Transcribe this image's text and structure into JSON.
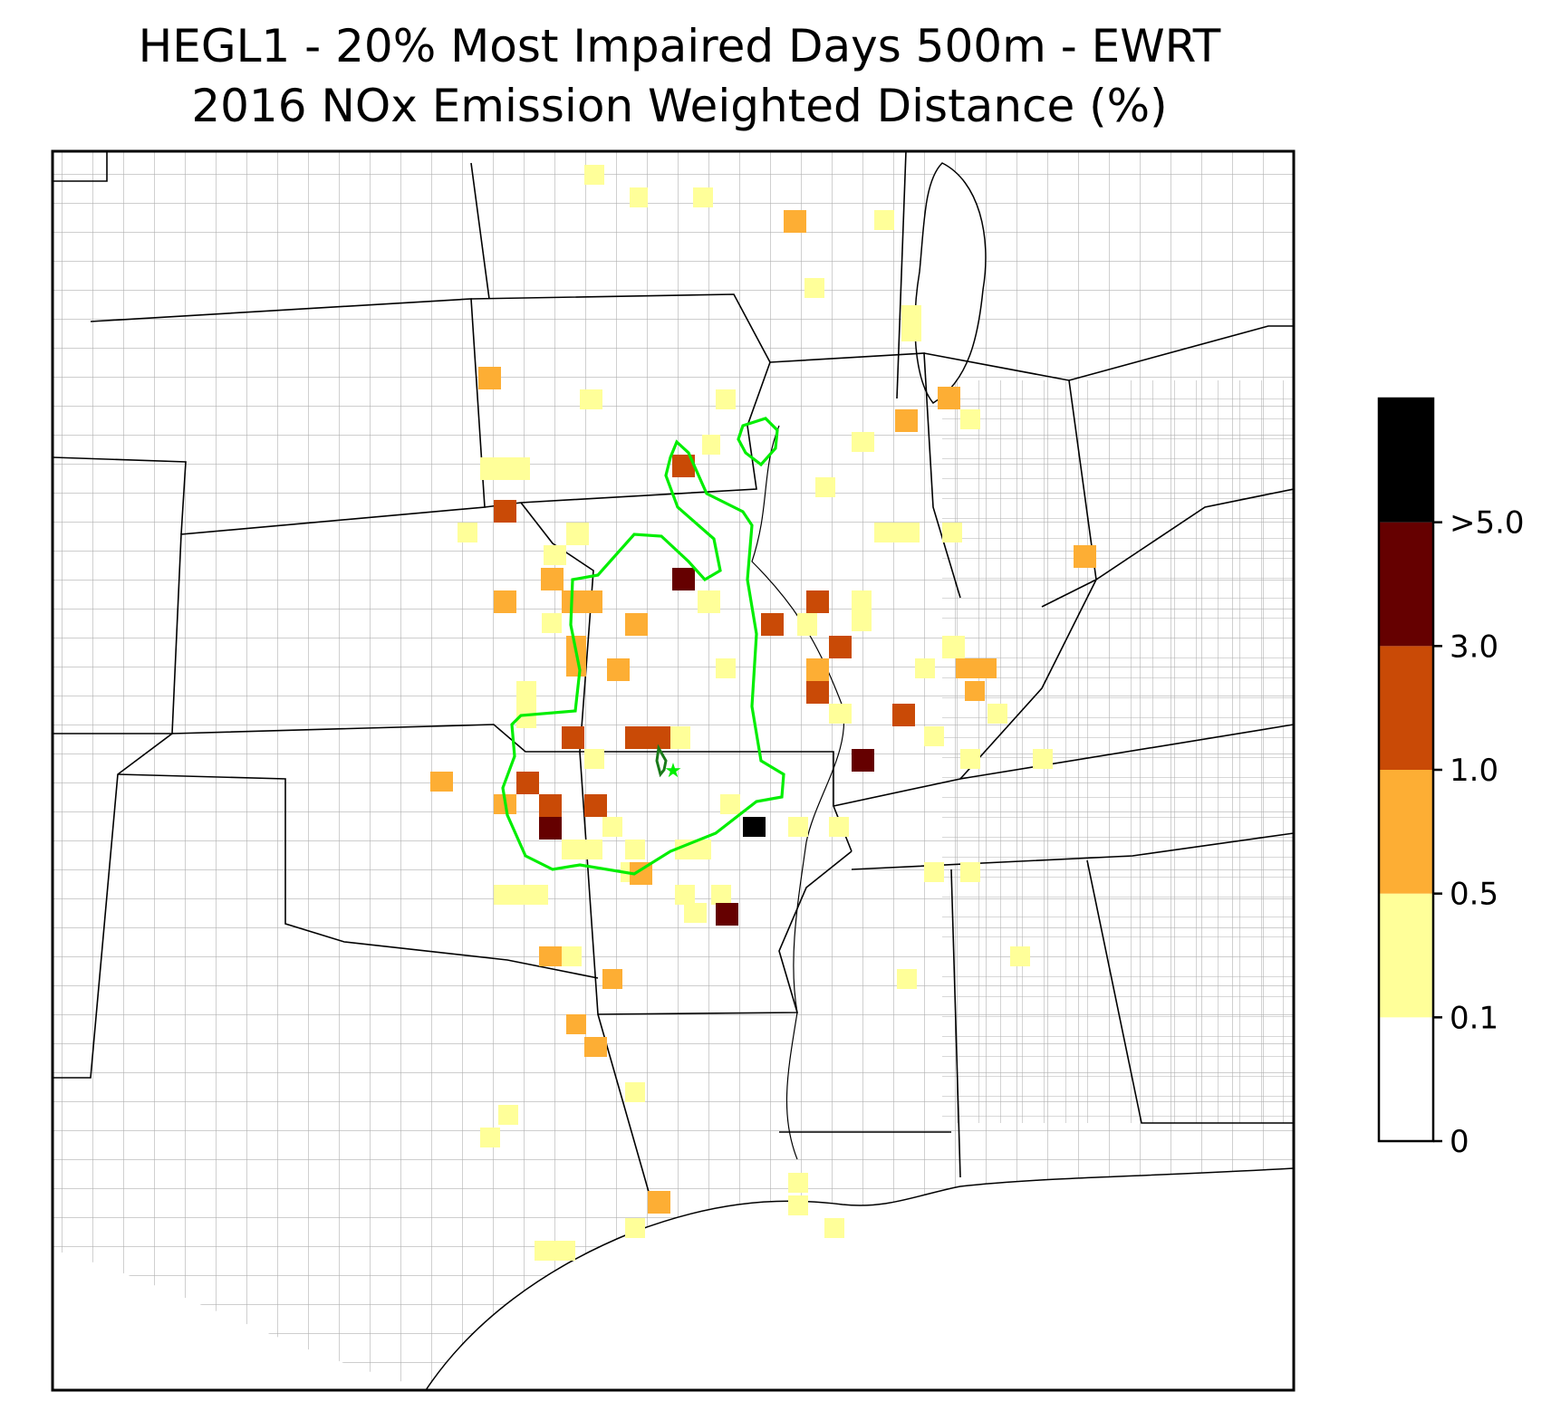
{
  "title": {
    "line1": "HEGL1 - 20% Most Impaired Days 500m - EWRT",
    "line2": "2016 NOx Emission Weighted Distance (%)"
  },
  "colorbar": {
    "ticks": [
      "0",
      "0.1",
      "0.5",
      "1.0",
      "3.0",
      ">5.0"
    ],
    "bins": [
      {
        "range": "0-0.1",
        "color": "#ffffff"
      },
      {
        "range": "0.1-0.5",
        "color": "#ffff99"
      },
      {
        "range": "0.5-1.0",
        "color": "#fdae34"
      },
      {
        "range": "1.0-3.0",
        "color": "#c94a06"
      },
      {
        "range": "3.0-5.0",
        "color": "#650000"
      },
      {
        "range": ">5.0",
        "color": "#000000"
      }
    ]
  },
  "colors": {
    "contour": "#00ee00",
    "class_site": "#1a7a1a",
    "state_lines": "#000000",
    "county_lines": "#a0a0a0"
  }
}
